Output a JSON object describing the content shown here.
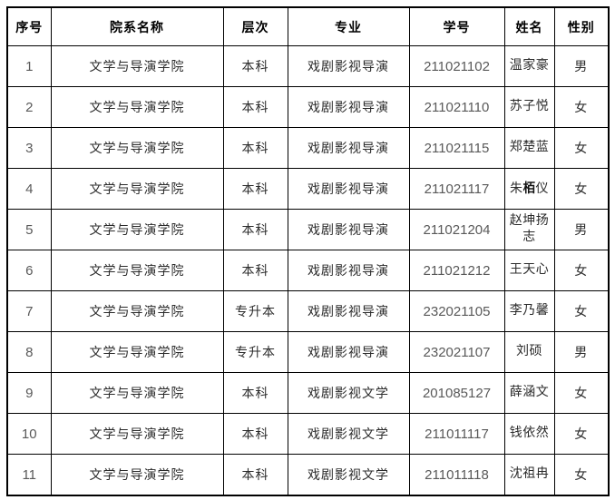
{
  "colors": {
    "background": "#ffffff",
    "border": "#000000",
    "header_text": "#000000",
    "body_text": "#2b2b2b",
    "digit_text": "#595959"
  },
  "table": {
    "headers": [
      {
        "key": "index",
        "label": "序号"
      },
      {
        "key": "department",
        "label": "院系名称"
      },
      {
        "key": "level",
        "label": "层次"
      },
      {
        "key": "major",
        "label": "专业"
      },
      {
        "key": "student_id",
        "label": "学号"
      },
      {
        "key": "name",
        "label": "姓名"
      },
      {
        "key": "gender",
        "label": "性别"
      }
    ],
    "rows": [
      {
        "index": "1",
        "department": "文学与导演学院",
        "level": "本科",
        "major": "戏剧影视导演",
        "student_id": "211021102",
        "name": "温家豪",
        "gender": "男"
      },
      {
        "index": "2",
        "department": "文学与导演学院",
        "level": "本科",
        "major": "戏剧影视导演",
        "student_id": "211021110",
        "name": "苏子悦",
        "gender": "女"
      },
      {
        "index": "3",
        "department": "文学与导演学院",
        "level": "本科",
        "major": "戏剧影视导演",
        "student_id": "211021115",
        "name": "郑楚蓝",
        "gender": "女"
      },
      {
        "index": "4",
        "department": "文学与导演学院",
        "level": "本科",
        "major": "戏剧影视导演",
        "student_id": "211021117",
        "name": "朱栢仪",
        "name_segments": [
          {
            "text": "朱"
          },
          {
            "text": "栢",
            "fallback_glyph": true
          },
          {
            "text": "仪"
          }
        ],
        "gender": "女"
      },
      {
        "index": "5",
        "department": "文学与导演学院",
        "level": "本科",
        "major": "戏剧影视导演",
        "student_id": "211021204",
        "name": "赵坤扬志",
        "gender": "男"
      },
      {
        "index": "6",
        "department": "文学与导演学院",
        "level": "本科",
        "major": "戏剧影视导演",
        "student_id": "211021212",
        "name": "王天心",
        "gender": "女"
      },
      {
        "index": "7",
        "department": "文学与导演学院",
        "level": "专升本",
        "major": "戏剧影视导演",
        "student_id": "232021105",
        "name": "李乃馨",
        "gender": "女"
      },
      {
        "index": "8",
        "department": "文学与导演学院",
        "level": "专升本",
        "major": "戏剧影视导演",
        "student_id": "232021107",
        "name": "刘硕",
        "gender": "男"
      },
      {
        "index": "9",
        "department": "文学与导演学院",
        "level": "本科",
        "major": "戏剧影视文学",
        "student_id": "201085127",
        "name": "薛涵文",
        "gender": "女"
      },
      {
        "index": "10",
        "department": "文学与导演学院",
        "level": "本科",
        "major": "戏剧影视文学",
        "student_id": "211011117",
        "name": "钱依然",
        "gender": "女"
      },
      {
        "index": "11",
        "department": "文学与导演学院",
        "level": "本科",
        "major": "戏剧影视文学",
        "student_id": "211011118",
        "name": "沈祖冉",
        "gender": "女"
      }
    ]
  },
  "chart_data": {
    "type": "table",
    "columns": [
      "序号",
      "院系名称",
      "层次",
      "专业",
      "学号",
      "姓名",
      "性别"
    ],
    "rows": [
      [
        "1",
        "文学与导演学院",
        "本科",
        "戏剧影视导演",
        "211021102",
        "温家豪",
        "男"
      ],
      [
        "2",
        "文学与导演学院",
        "本科",
        "戏剧影视导演",
        "211021110",
        "苏子悦",
        "女"
      ],
      [
        "3",
        "文学与导演学院",
        "本科",
        "戏剧影视导演",
        "211021115",
        "郑楚蓝",
        "女"
      ],
      [
        "4",
        "文学与导演学院",
        "本科",
        "戏剧影视导演",
        "211021117",
        "朱栢仪",
        "女"
      ],
      [
        "5",
        "文学与导演学院",
        "本科",
        "戏剧影视导演",
        "211021204",
        "赵坤扬志",
        "男"
      ],
      [
        "6",
        "文学与导演学院",
        "本科",
        "戏剧影视导演",
        "211021212",
        "王天心",
        "女"
      ],
      [
        "7",
        "文学与导演学院",
        "专升本",
        "戏剧影视导演",
        "232021105",
        "李乃馨",
        "女"
      ],
      [
        "8",
        "文学与导演学院",
        "专升本",
        "戏剧影视导演",
        "232021107",
        "刘硕",
        "男"
      ],
      [
        "9",
        "文学与导演学院",
        "本科",
        "戏剧影视文学",
        "201085127",
        "薛涵文",
        "女"
      ],
      [
        "10",
        "文学与导演学院",
        "本科",
        "戏剧影视文学",
        "211011117",
        "钱依然",
        "女"
      ],
      [
        "11",
        "文学与导演学院",
        "本科",
        "戏剧影视文学",
        "211011118",
        "沈祖冉",
        "女"
      ]
    ]
  }
}
